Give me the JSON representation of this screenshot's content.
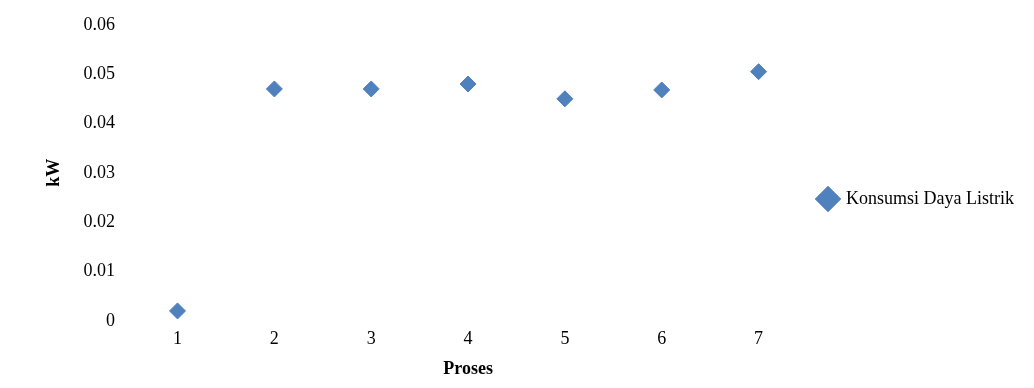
{
  "chart_data": {
    "type": "scatter",
    "x_label": "Proses",
    "y_label": "kW",
    "categories": [
      "1",
      "2",
      "3",
      "4",
      "5",
      "6",
      "7"
    ],
    "series": [
      {
        "name": "Konsumsi Daya Listrik",
        "color": "#4f81bd",
        "marker": "diamond",
        "values": [
          0.002,
          0.047,
          0.047,
          0.048,
          0.045,
          0.0468,
          0.0505
        ]
      }
    ],
    "ylim": [
      0,
      0.06
    ],
    "yticks": [
      0,
      0.01,
      0.02,
      0.03,
      0.04,
      0.05,
      0.06
    ],
    "grid": false,
    "legend": "right"
  }
}
